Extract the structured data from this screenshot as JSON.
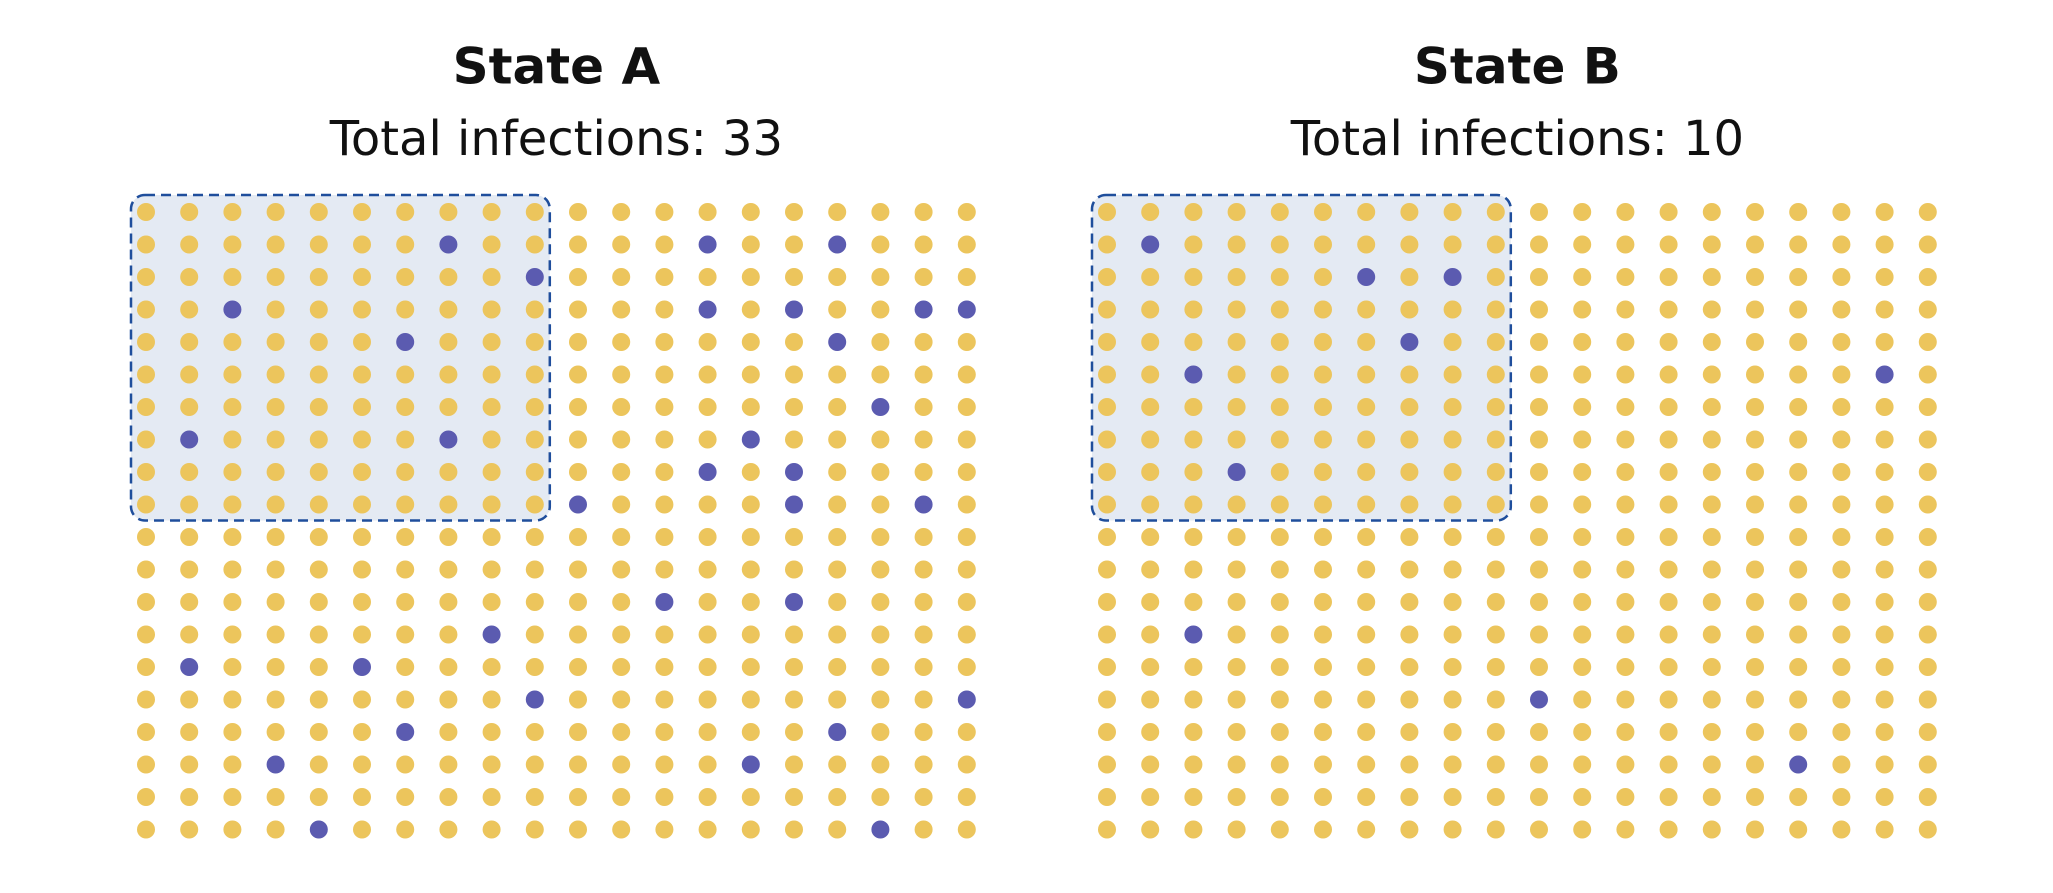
{
  "chart_data": [
    {
      "type": "dot-grid",
      "title": "State A",
      "subtitle": "Total infections: 33",
      "rows": 20,
      "cols": 20,
      "color": "#ecc55c",
      "infected_color": "#5b5bb0",
      "highlight": {
        "rows": 10,
        "cols": 10,
        "color": "#e4eaf3",
        "border_color": "#1f4e9c"
      },
      "infected": [
        [
          1,
          7
        ],
        [
          1,
          13
        ],
        [
          1,
          16
        ],
        [
          2,
          9
        ],
        [
          3,
          2
        ],
        [
          3,
          13
        ],
        [
          3,
          15
        ],
        [
          3,
          18
        ],
        [
          3,
          19
        ],
        [
          4,
          6
        ],
        [
          4,
          16
        ],
        [
          6,
          17
        ],
        [
          7,
          1
        ],
        [
          7,
          7
        ],
        [
          7,
          14
        ],
        [
          8,
          13
        ],
        [
          8,
          15
        ],
        [
          9,
          10
        ],
        [
          9,
          15
        ],
        [
          9,
          18
        ],
        [
          12,
          12
        ],
        [
          12,
          15
        ],
        [
          13,
          8
        ],
        [
          14,
          1
        ],
        [
          14,
          5
        ],
        [
          15,
          9
        ],
        [
          15,
          19
        ],
        [
          16,
          6
        ],
        [
          16,
          16
        ],
        [
          17,
          3
        ],
        [
          17,
          14
        ],
        [
          19,
          4
        ],
        [
          19,
          17
        ]
      ]
    },
    {
      "type": "dot-grid",
      "title": "State B",
      "subtitle": "Total infections: 10",
      "rows": 20,
      "cols": 20,
      "color": "#ecc55c",
      "infected_color": "#5b5bb0",
      "highlight": {
        "rows": 10,
        "cols": 10,
        "color": "#e4eaf3",
        "border_color": "#1f4e9c"
      },
      "infected": [
        [
          1,
          1
        ],
        [
          2,
          6
        ],
        [
          2,
          8
        ],
        [
          4,
          7
        ],
        [
          5,
          2
        ],
        [
          5,
          18
        ],
        [
          8,
          3
        ],
        [
          13,
          2
        ],
        [
          15,
          10
        ],
        [
          17,
          16
        ]
      ]
    }
  ]
}
